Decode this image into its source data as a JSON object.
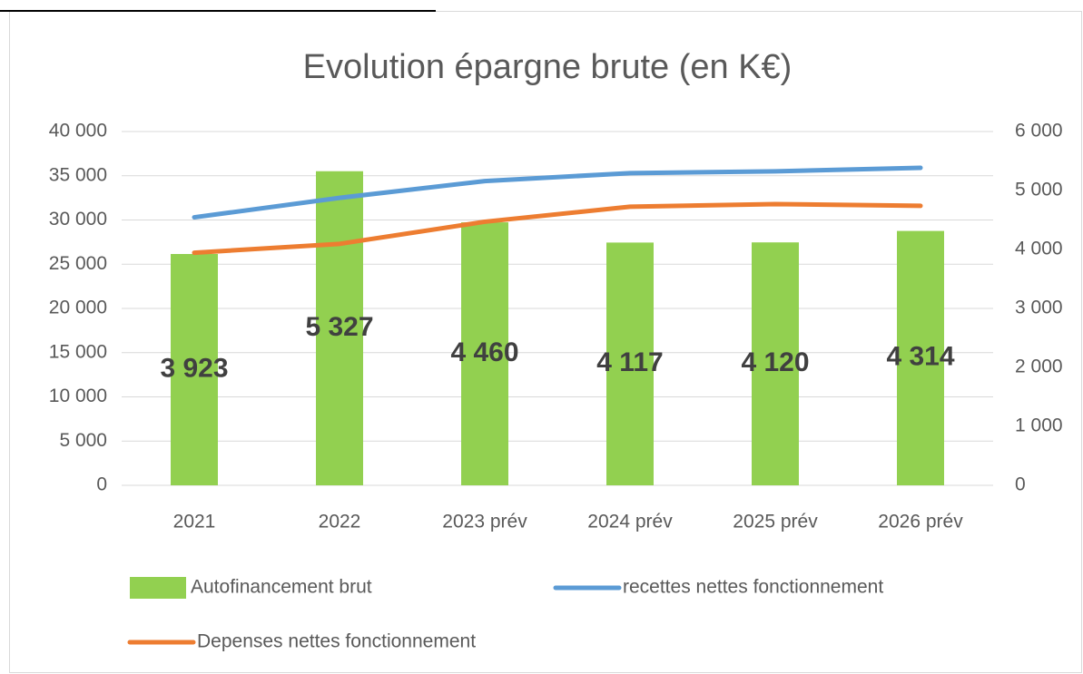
{
  "chart_data": {
    "type": "bar_line",
    "title": "Evolution épargne brute (en K€)",
    "categories": [
      "2021",
      "2022",
      "2023 prév",
      "2024 prév",
      "2025 prév",
      "2026 prév"
    ],
    "series": [
      {
        "name": "Autofinancement brut",
        "type": "bar",
        "axis": "y2",
        "color": "#92d050",
        "values": [
          3923,
          5327,
          4460,
          4117,
          4120,
          4314
        ],
        "value_labels": [
          "3 923",
          "5 327",
          "4 460",
          "4 117",
          "4 120",
          "4 314"
        ]
      },
      {
        "name": "recettes nettes fonctionnement",
        "type": "line",
        "color": "#5b9bd5",
        "values": [
          30300,
          32500,
          34400,
          35300,
          35500,
          35900
        ]
      },
      {
        "name": "Depenses nettes fonctionnement",
        "type": "line",
        "color": "#ed7d31",
        "values": [
          26300,
          27300,
          29800,
          31500,
          31800,
          31600
        ]
      }
    ],
    "ylim": [
      0,
      40000
    ],
    "yticks": [
      0,
      {
        "value": 5000,
        "label": "5 000"
      },
      {
        "value": 10000,
        "label": "10 000"
      },
      {
        "value": 15000,
        "label": "15 000"
      },
      {
        "value": 20000,
        "label": "20 000"
      },
      {
        "value": 25000,
        "label": "25 000"
      },
      {
        "value": 30000,
        "label": "30 000"
      },
      {
        "value": 35000,
        "label": "35 000"
      },
      {
        "value": 40000,
        "label": "40 000"
      }
    ],
    "y2lim": [
      0,
      6000
    ],
    "y2ticks": [
      0,
      {
        "value": 1000,
        "label": "1 000"
      },
      {
        "value": 2000,
        "label": "2 000"
      },
      {
        "value": 3000,
        "label": "3 000"
      },
      {
        "value": 4000,
        "label": "4 000"
      },
      {
        "value": 5000,
        "label": "5 000"
      },
      {
        "value": 6000,
        "label": "6 000"
      }
    ],
    "grid": true
  }
}
